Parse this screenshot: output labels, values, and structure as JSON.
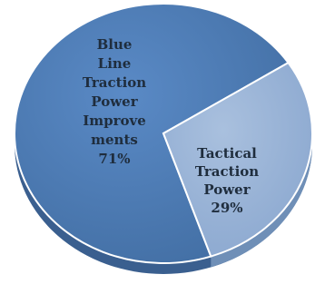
{
  "chart_data": {
    "type": "pie",
    "title": "",
    "slices": [
      {
        "label_lines": [
          "Blue",
          "Line",
          "Traction",
          "Power",
          "Improve",
          "ments",
          "71%"
        ],
        "value": 71,
        "color": "#4f81bd"
      },
      {
        "label_lines": [
          "Tactical",
          "Traction",
          "Power",
          "29%"
        ],
        "value": 29,
        "color": "#95b3d7"
      }
    ],
    "colors": {
      "slice_edge": "#ffffff",
      "depth_main": "#3a5f8f",
      "depth_secondary": "#6f8fb7",
      "label_text": "#1f2d3d"
    }
  }
}
